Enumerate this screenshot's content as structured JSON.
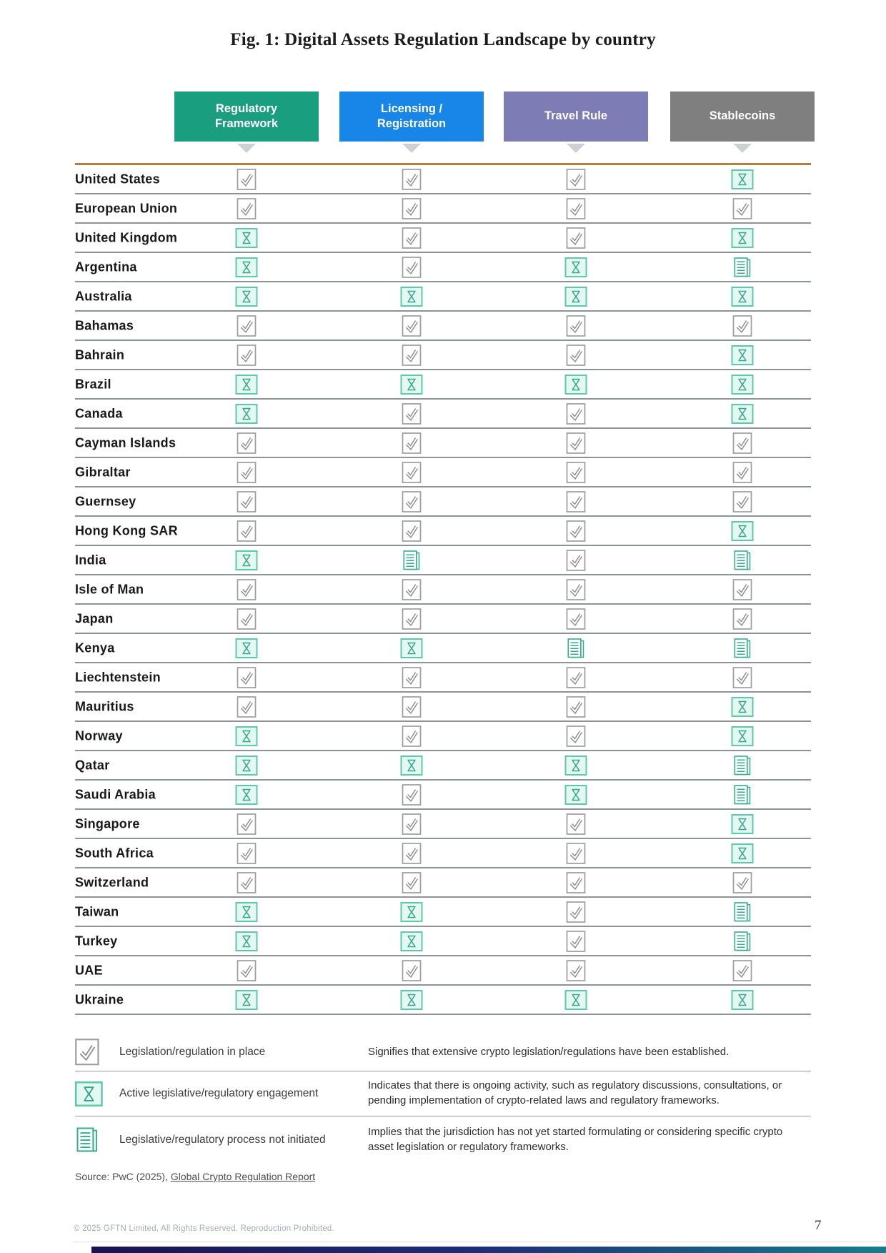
{
  "title": "Fig. 1: Digital Assets Regulation Landscape by country",
  "columns": [
    {
      "id": "regulatory-framework",
      "label": "Regulatory Framework",
      "color": "#1a9e80"
    },
    {
      "id": "licensing-registration",
      "label": "Licensing / Registration",
      "color": "#1786e8"
    },
    {
      "id": "travel-rule",
      "label": "Travel Rule",
      "color": "#7d7cb5"
    },
    {
      "id": "stablecoins",
      "label": "Stablecoins",
      "color": "#7f7f7f"
    }
  ],
  "rows": [
    {
      "country": "United States",
      "statuses": [
        "check",
        "check",
        "check",
        "hourglass"
      ]
    },
    {
      "country": "European Union",
      "statuses": [
        "check",
        "check",
        "check",
        "check"
      ]
    },
    {
      "country": "United Kingdom",
      "statuses": [
        "hourglass",
        "check",
        "check",
        "hourglass"
      ]
    },
    {
      "country": "Argentina",
      "statuses": [
        "hourglass",
        "check",
        "hourglass",
        "document"
      ]
    },
    {
      "country": "Australia",
      "statuses": [
        "hourglass",
        "hourglass",
        "hourglass",
        "hourglass"
      ]
    },
    {
      "country": "Bahamas",
      "statuses": [
        "check",
        "check",
        "check",
        "check"
      ]
    },
    {
      "country": "Bahrain",
      "statuses": [
        "check",
        "check",
        "check",
        "hourglass"
      ]
    },
    {
      "country": "Brazil",
      "statuses": [
        "hourglass",
        "hourglass",
        "hourglass",
        "hourglass"
      ]
    },
    {
      "country": "Canada",
      "statuses": [
        "hourglass",
        "check",
        "check",
        "hourglass"
      ]
    },
    {
      "country": "Cayman Islands",
      "statuses": [
        "check",
        "check",
        "check",
        "check"
      ]
    },
    {
      "country": "Gibraltar",
      "statuses": [
        "check",
        "check",
        "check",
        "check"
      ]
    },
    {
      "country": "Guernsey",
      "statuses": [
        "check",
        "check",
        "check",
        "check"
      ]
    },
    {
      "country": "Hong Kong SAR",
      "statuses": [
        "check",
        "check",
        "check",
        "hourglass"
      ]
    },
    {
      "country": "India",
      "statuses": [
        "hourglass",
        "document",
        "check",
        "document"
      ]
    },
    {
      "country": "Isle of Man",
      "statuses": [
        "check",
        "check",
        "check",
        "check"
      ]
    },
    {
      "country": "Japan",
      "statuses": [
        "check",
        "check",
        "check",
        "check"
      ]
    },
    {
      "country": "Kenya",
      "statuses": [
        "hourglass",
        "hourglass",
        "document",
        "document"
      ]
    },
    {
      "country": "Liechtenstein",
      "statuses": [
        "check",
        "check",
        "check",
        "check"
      ]
    },
    {
      "country": "Mauritius",
      "statuses": [
        "check",
        "check",
        "check",
        "hourglass"
      ]
    },
    {
      "country": "Norway",
      "statuses": [
        "hourglass",
        "check",
        "check",
        "hourglass"
      ]
    },
    {
      "country": "Qatar",
      "statuses": [
        "hourglass",
        "hourglass",
        "hourglass",
        "document"
      ]
    },
    {
      "country": "Saudi Arabia",
      "statuses": [
        "hourglass",
        "check",
        "hourglass",
        "document"
      ]
    },
    {
      "country": "Singapore",
      "statuses": [
        "check",
        "check",
        "check",
        "hourglass"
      ]
    },
    {
      "country": "South Africa",
      "statuses": [
        "check",
        "check",
        "check",
        "hourglass"
      ]
    },
    {
      "country": "Switzerland",
      "statuses": [
        "check",
        "check",
        "check",
        "check"
      ]
    },
    {
      "country": "Taiwan",
      "statuses": [
        "hourglass",
        "hourglass",
        "check",
        "document"
      ]
    },
    {
      "country": "Turkey",
      "statuses": [
        "hourglass",
        "hourglass",
        "check",
        "document"
      ]
    },
    {
      "country": "UAE",
      "statuses": [
        "check",
        "check",
        "check",
        "check"
      ]
    },
    {
      "country": "Ukraine",
      "statuses": [
        "hourglass",
        "hourglass",
        "hourglass",
        "hourglass"
      ]
    }
  ],
  "legend": [
    {
      "icon": "check",
      "label": "Legislation/regulation in place",
      "description": "Signifies that extensive crypto legislation/regulations have been established."
    },
    {
      "icon": "hourglass",
      "label": "Active legislative/regulatory engagement",
      "description": "Indicates that there is ongoing activity, such as regulatory discussions, consultations, or pending implementation of crypto-related laws and regulatory frameworks."
    },
    {
      "icon": "document",
      "label": "Legislative/regulatory process not initiated",
      "description": "Implies that the jurisdiction has not yet started formulating or considering specific crypto asset legislation or regulatory frameworks."
    }
  ],
  "source": {
    "prefix": "Source: PwC (2025), ",
    "link": "Global Crypto Regulation Report"
  },
  "footer": {
    "copyright": "© 2025 GFTN Limited, All Rights Reserved. Reproduction Prohibited.",
    "page": "7"
  },
  "icon_colors": {
    "check_glyph": "#8b8b8b",
    "check_border": "#9d9d9d",
    "hourglass_glyph": "#34a78c",
    "hourglass_border": "#5cc9ad",
    "hourglass_bg": "#e5f7f1",
    "document_stroke": "#35ac8e",
    "document_bg": "#f3fbf8"
  },
  "layout_colors": {
    "top_rule": "#b28045",
    "row_rule": "#8f9395",
    "pointer": "#cdd1d4"
  }
}
